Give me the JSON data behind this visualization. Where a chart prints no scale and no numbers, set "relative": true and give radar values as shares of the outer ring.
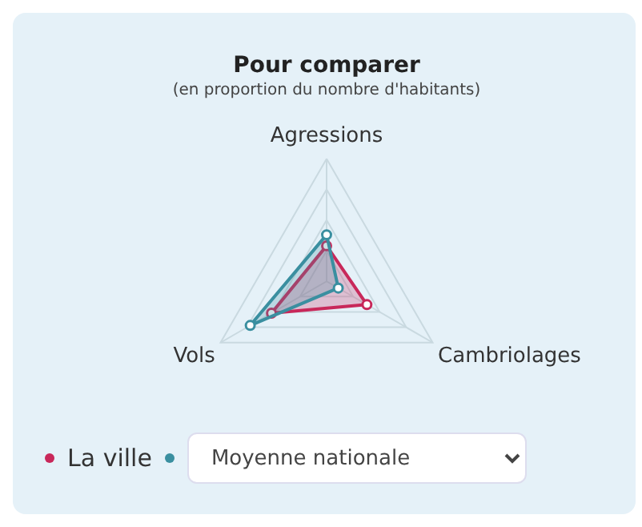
{
  "chart_data": {
    "type": "radar",
    "title": "Pour comparer",
    "subtitle": "(en proportion du nombre d'habitants)",
    "categories": [
      "Agressions",
      "Cambriolages",
      "Vols"
    ],
    "relative": true,
    "grid": true,
    "legend": "bottom",
    "marker": "circle",
    "series": [
      {
        "name": "La ville",
        "color": "#c8285a",
        "values": [
          0.29,
          0.38,
          0.52
        ]
      },
      {
        "name": "Moyenne nationale",
        "color": "#3a8fa0",
        "values": [
          0.38,
          0.11,
          0.72
        ]
      }
    ]
  }
}
